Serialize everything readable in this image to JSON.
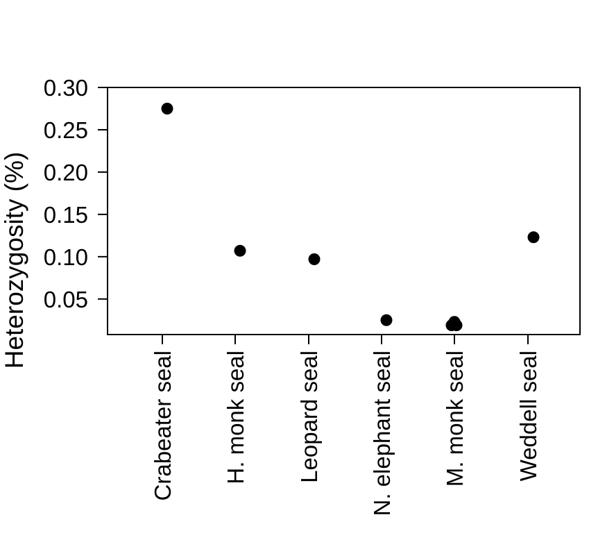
{
  "chart_data": {
    "type": "scatter",
    "title": "",
    "xlabel": "",
    "ylabel": "Heterozygosity (%)",
    "ylim": [
      0.008,
      0.3
    ],
    "yticks": [
      "0.05",
      "0.10",
      "0.15",
      "0.20",
      "0.25",
      "0.30"
    ],
    "grid": false,
    "categories": [
      "Crabeater seal",
      "H. monk seal",
      "Leopard seal",
      "N. elephant seal",
      "M. monk seal",
      "Weddell seal"
    ],
    "points": [
      {
        "category": "Crabeater seal",
        "y": 0.275
      },
      {
        "category": "H. monk seal",
        "y": 0.107
      },
      {
        "category": "Leopard seal",
        "y": 0.097
      },
      {
        "category": "N. elephant seal",
        "y": 0.025
      },
      {
        "category": "M. monk seal",
        "y": 0.019
      },
      {
        "category": "M. monk seal",
        "y": 0.023
      },
      {
        "category": "M. monk seal",
        "y": 0.019
      },
      {
        "category": "Weddell seal",
        "y": 0.123
      }
    ],
    "point_color": "#000000"
  }
}
